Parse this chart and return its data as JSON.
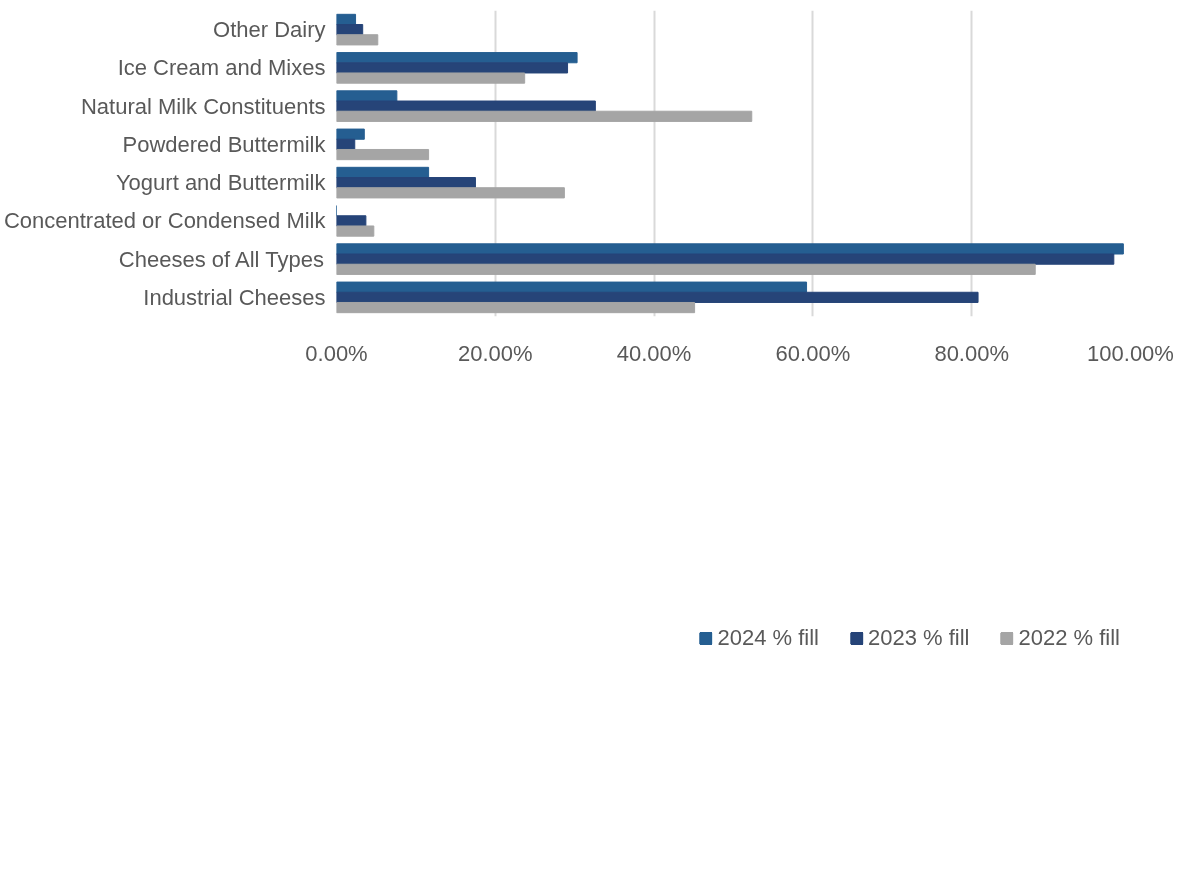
{
  "chart_data": {
    "type": "bar",
    "orientation": "horizontal",
    "categories": [
      "Other Dairy",
      "Ice Cream and Mixes",
      "Natural Milk Constituents",
      "Powdered Buttermilk",
      "Yogurt and Buttermilk",
      "Concentrated or Condensed Milk",
      "Cheeses of All Types",
      "Industrial Cheeses"
    ],
    "series": [
      {
        "name": "2024 % fill",
        "color": "#255e91",
        "values": [
          2.4,
          30.3,
          7.6,
          3.5,
          11.6,
          0,
          99.1,
          59.2
        ]
      },
      {
        "name": "2023 % fill",
        "color": "#264478",
        "values": [
          3.3,
          29.1,
          32.6,
          2.3,
          17.5,
          3.7,
          97.9,
          80.8
        ]
      },
      {
        "name": "2022 % fill",
        "color": "#a5a5a5",
        "values": [
          5.2,
          23.7,
          52.3,
          11.6,
          28.7,
          4.7,
          88.0,
          45.1
        ]
      }
    ],
    "xlim": [
      0,
      100
    ],
    "xticks": [
      {
        "value": 0,
        "label": "0.00%"
      },
      {
        "value": 20,
        "label": "20.00%"
      },
      {
        "value": 40,
        "label": "40.00%"
      },
      {
        "value": 60,
        "label": "60.00%"
      },
      {
        "value": 80,
        "label": "80.00%"
      },
      {
        "value": 100,
        "label": "100.00%"
      }
    ],
    "grid": "x",
    "legend": "bottom"
  }
}
